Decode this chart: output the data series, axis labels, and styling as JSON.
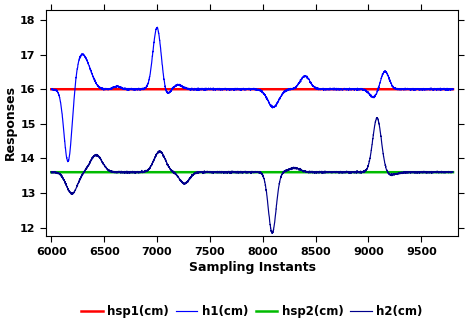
{
  "hsp1": 16.0,
  "hsp2": 13.6,
  "x_start": 6000,
  "x_end": 9800,
  "xlim": [
    5950,
    9850
  ],
  "ylim": [
    11.75,
    18.3
  ],
  "yticks": [
    12,
    13,
    14,
    15,
    16,
    17,
    18
  ],
  "xticks": [
    6000,
    6500,
    7000,
    7500,
    8000,
    8500,
    9000,
    9500
  ],
  "xlabel": "Sampling Instants",
  "ylabel": "Responses",
  "color_hsp1": "#ff0000",
  "color_h1": "#0000ff",
  "color_hsp2": "#00bb00",
  "color_h2": "#00008b",
  "legend_labels": [
    "hsp1(cm)",
    "h1(cm)",
    "hsp2(cm)",
    "h2(cm)"
  ],
  "title": ""
}
